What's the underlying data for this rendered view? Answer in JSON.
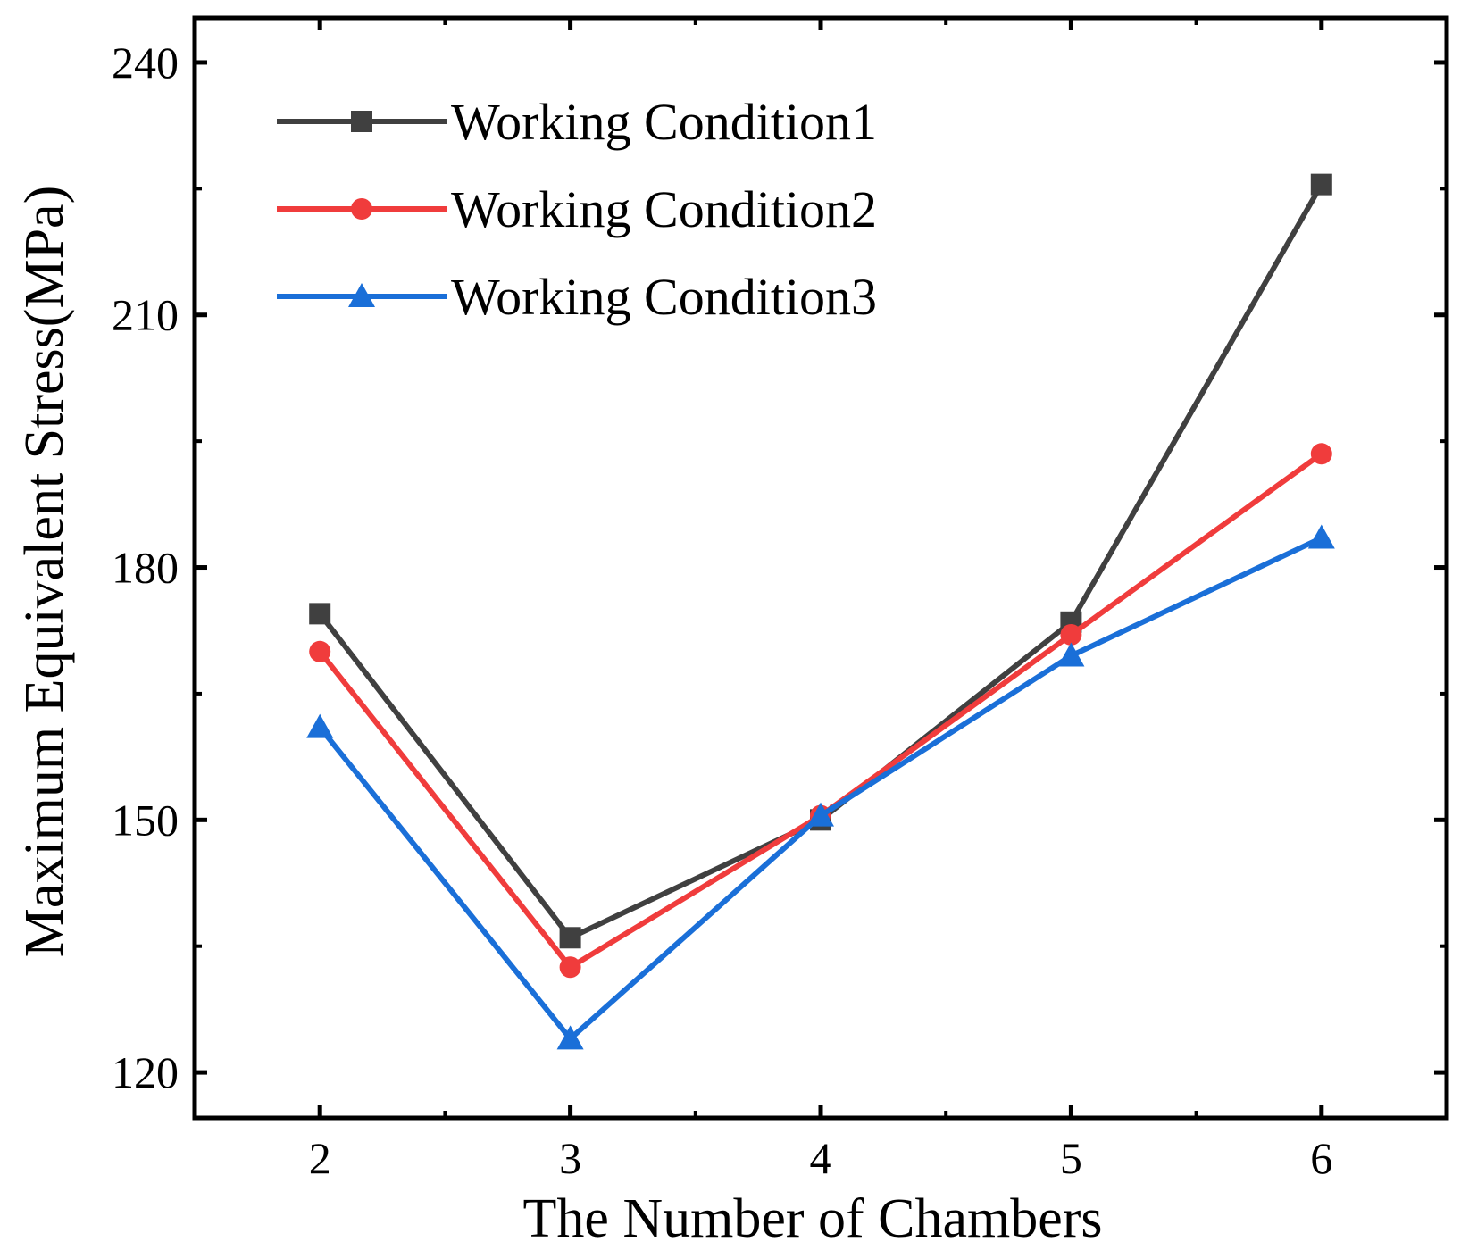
{
  "chart_data": {
    "type": "line",
    "xlabel": "The Number of Chambers",
    "ylabel": "Maximum Equivalent Stress(MPa)",
    "xlim": [
      1.5,
      6.5
    ],
    "ylim": [
      114.6,
      245.3
    ],
    "x": [
      2,
      3,
      4,
      5,
      6
    ],
    "x_ticks": [
      "2",
      "3",
      "4",
      "5",
      "6"
    ],
    "y_ticks": [
      120,
      150,
      180,
      210,
      240
    ],
    "grid": false,
    "legend_position": "top-left",
    "series": [
      {
        "name": "Working Condition1",
        "marker": "square",
        "color": "#404040",
        "values": [
          174.5,
          136.0,
          150.0,
          173.5,
          225.5
        ]
      },
      {
        "name": "Working Condition2",
        "marker": "circle",
        "color": "#f03c3c",
        "values": [
          170.0,
          132.5,
          150.5,
          172.0,
          193.5
        ]
      },
      {
        "name": "Working Condition3",
        "marker": "triangle",
        "color": "#1a6fd8",
        "values": [
          161.0,
          124.0,
          150.5,
          169.5,
          183.5
        ]
      }
    ]
  }
}
